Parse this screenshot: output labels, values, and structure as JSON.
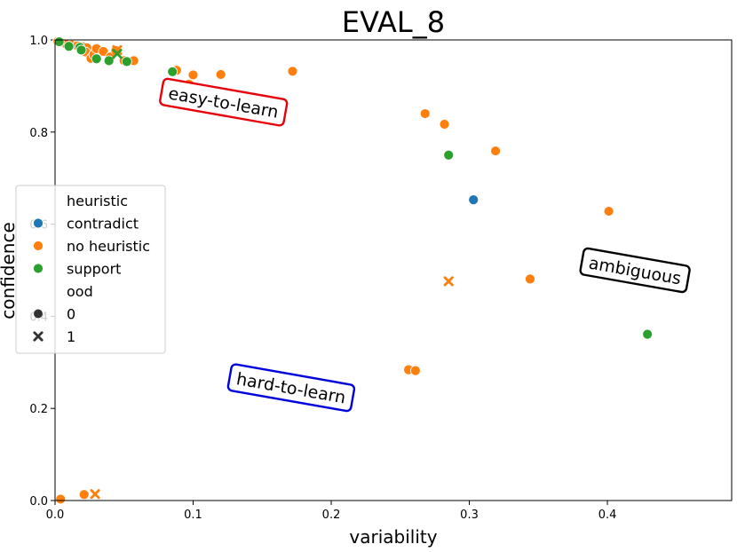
{
  "chart_data": {
    "type": "scatter",
    "title": "EVAL_8",
    "xlabel": "variability",
    "ylabel": "confidence",
    "xlim": [
      0.0,
      0.49
    ],
    "ylim": [
      0.0,
      1.0
    ],
    "x_ticks": [
      0.0,
      0.1,
      0.2,
      0.3,
      0.4
    ],
    "x_tick_labels": [
      "0.0",
      "0.1",
      "0.2",
      "0.3",
      "0.4"
    ],
    "y_ticks": [
      0.0,
      0.2,
      0.4,
      0.6,
      0.8,
      1.0
    ],
    "y_tick_labels": [
      "0.0",
      "0.2",
      "0.4",
      "0.6",
      "0.8",
      "1.0"
    ],
    "colors": {
      "contradict": "#1f77b4",
      "no heuristic": "#ff7f0e",
      "support": "#2ca02c"
    },
    "legend": {
      "placement": "center-left",
      "hue_title": "heuristic",
      "hue_entries": [
        "contradict",
        "no heuristic",
        "support"
      ],
      "style_title": "ood",
      "style_entries": [
        "0",
        "1"
      ]
    },
    "region_labels": [
      {
        "text": "easy-to-learn",
        "x": 0.122,
        "y": 0.865,
        "color": "#e8000b",
        "rotation": 10
      },
      {
        "text": "ambiguous",
        "x": 0.42,
        "y": 0.5,
        "color": "#000000",
        "rotation": 10
      },
      {
        "text": "hard-to-learn",
        "x": 0.171,
        "y": 0.245,
        "color": "#0000dd",
        "rotation": 10
      }
    ],
    "series": [
      {
        "name": "contradict",
        "points": [
          {
            "x": 0.303,
            "y": 0.653,
            "ood": 0
          }
        ]
      },
      {
        "name": "no heuristic",
        "points": [
          {
            "x": 0.002,
            "y": 0.997,
            "ood": 0
          },
          {
            "x": 0.004,
            "y": 0.995,
            "ood": 0
          },
          {
            "x": 0.008,
            "y": 0.991,
            "ood": 0
          },
          {
            "x": 0.012,
            "y": 0.989,
            "ood": 0
          },
          {
            "x": 0.016,
            "y": 0.987,
            "ood": 0
          },
          {
            "x": 0.02,
            "y": 0.985,
            "ood": 0
          },
          {
            "x": 0.023,
            "y": 0.983,
            "ood": 0
          },
          {
            "x": 0.022,
            "y": 0.974,
            "ood": 0
          },
          {
            "x": 0.026,
            "y": 0.96,
            "ood": 0
          },
          {
            "x": 0.028,
            "y": 0.968,
            "ood": 0
          },
          {
            "x": 0.03,
            "y": 0.981,
            "ood": 0
          },
          {
            "x": 0.035,
            "y": 0.975,
            "ood": 0
          },
          {
            "x": 0.04,
            "y": 0.963,
            "ood": 0
          },
          {
            "x": 0.044,
            "y": 0.977,
            "ood": 0
          },
          {
            "x": 0.05,
            "y": 0.955,
            "ood": 0
          },
          {
            "x": 0.057,
            "y": 0.955,
            "ood": 0
          },
          {
            "x": 0.088,
            "y": 0.934,
            "ood": 0
          },
          {
            "x": 0.097,
            "y": 0.904,
            "ood": 0
          },
          {
            "x": 0.1,
            "y": 0.924,
            "ood": 0
          },
          {
            "x": 0.12,
            "y": 0.925,
            "ood": 0
          },
          {
            "x": 0.172,
            "y": 0.932,
            "ood": 0
          },
          {
            "x": 0.268,
            "y": 0.84,
            "ood": 0
          },
          {
            "x": 0.282,
            "y": 0.817,
            "ood": 0
          },
          {
            "x": 0.319,
            "y": 0.759,
            "ood": 0
          },
          {
            "x": 0.401,
            "y": 0.628,
            "ood": 0
          },
          {
            "x": 0.344,
            "y": 0.481,
            "ood": 0
          },
          {
            "x": 0.256,
            "y": 0.284,
            "ood": 0
          },
          {
            "x": 0.261,
            "y": 0.282,
            "ood": 0
          },
          {
            "x": 0.004,
            "y": 0.003,
            "ood": 0
          },
          {
            "x": 0.021,
            "y": 0.013,
            "ood": 0
          },
          {
            "x": 0.045,
            "y": 0.978,
            "ood": 1
          },
          {
            "x": 0.285,
            "y": 0.476,
            "ood": 1
          },
          {
            "x": 0.029,
            "y": 0.014,
            "ood": 1
          }
        ]
      },
      {
        "name": "support",
        "points": [
          {
            "x": 0.003,
            "y": 0.996,
            "ood": 0
          },
          {
            "x": 0.01,
            "y": 0.986,
            "ood": 0
          },
          {
            "x": 0.018,
            "y": 0.984,
            "ood": 0
          },
          {
            "x": 0.019,
            "y": 0.978,
            "ood": 0
          },
          {
            "x": 0.03,
            "y": 0.959,
            "ood": 0
          },
          {
            "x": 0.039,
            "y": 0.955,
            "ood": 0
          },
          {
            "x": 0.052,
            "y": 0.953,
            "ood": 0
          },
          {
            "x": 0.085,
            "y": 0.931,
            "ood": 0
          },
          {
            "x": 0.285,
            "y": 0.75,
            "ood": 0
          },
          {
            "x": 0.429,
            "y": 0.361,
            "ood": 0
          },
          {
            "x": 0.045,
            "y": 0.97,
            "ood": 1
          }
        ]
      }
    ]
  }
}
